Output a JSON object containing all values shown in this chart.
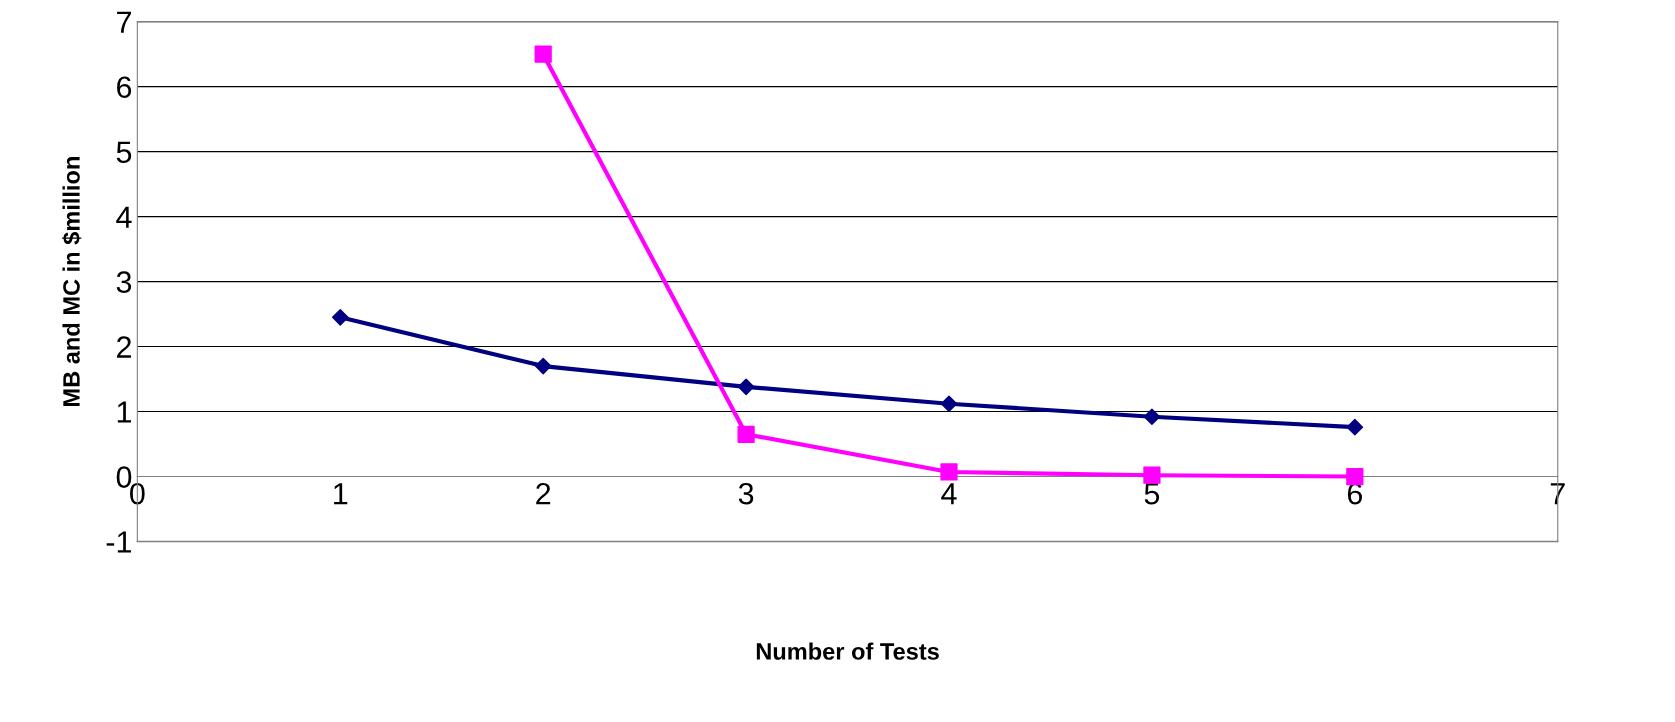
{
  "chart_data": {
    "type": "line",
    "xlabel": "Number of Tests",
    "ylabel": "MB and MC in $million",
    "x": [
      1,
      2,
      3,
      4,
      5,
      6
    ],
    "series": [
      {
        "color": "#000080",
        "marker": "diamond",
        "values": [
          2.45,
          1.7,
          1.38,
          1.12,
          0.92,
          0.76
        ]
      },
      {
        "color": "#ff00ff",
        "marker": "square",
        "values": [
          null,
          6.5,
          0.65,
          0.07,
          0.02,
          0.0
        ]
      }
    ],
    "xlim": [
      0,
      7
    ],
    "xticks": [
      0,
      1,
      2,
      3,
      4,
      5,
      6,
      7
    ],
    "ylim": [
      -1,
      7
    ],
    "yticks": [
      -1,
      0,
      1,
      2,
      3,
      4,
      5,
      6,
      7
    ],
    "grid": "y",
    "legend": false,
    "line_style": "solid"
  }
}
